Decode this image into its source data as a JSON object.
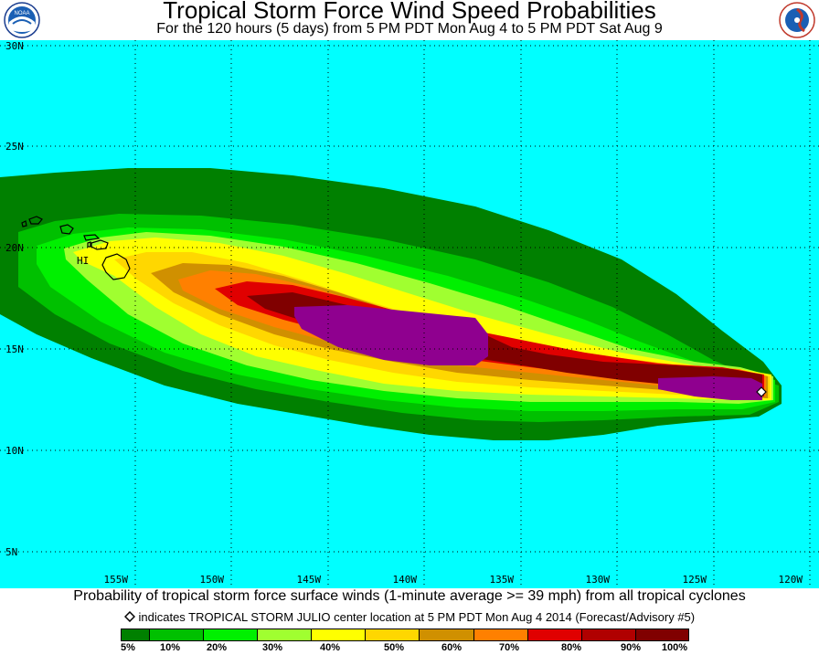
{
  "header": {
    "title": "Tropical Storm Force Wind Speed Probabilities",
    "subtitle": "For the 120 hours (5 days) from 5 PM PDT Mon Aug 4 to 5 PM PDT Sat Aug 9",
    "left_logo": "noaa-logo",
    "right_logo": "national-weather-service-logo"
  },
  "map": {
    "ocean_color": "#00ffff",
    "lat_labels": [
      "30N",
      "25N",
      "20N",
      "15N",
      "10N",
      "5N"
    ],
    "lon_labels": [
      "155W",
      "150W",
      "145W",
      "140W",
      "135W",
      "130W",
      "125W",
      "120W"
    ],
    "island_label": "HI",
    "storm_marker": "diamond-marker"
  },
  "footer": {
    "description": "Probability of tropical storm force surface winds (1-minute average >= 39 mph) from all tropical cyclones",
    "marker_note": "indicates TROPICAL STORM JULIO center location at 5 PM PDT Mon Aug 4 2014 (Forecast/Advisory #5)"
  },
  "legend": {
    "colors": [
      "#008000",
      "#00c000",
      "#00f000",
      "#a0ff30",
      "#ffff00",
      "#ffd700",
      "#d09000",
      "#ff8000",
      "#e00000",
      "#b00000",
      "#800000",
      "#8f008f"
    ],
    "labels": [
      "5%",
      "10%",
      "20%",
      "30%",
      "40%",
      "50%",
      "60%",
      "70%",
      "80%",
      "90%",
      "100%"
    ]
  }
}
